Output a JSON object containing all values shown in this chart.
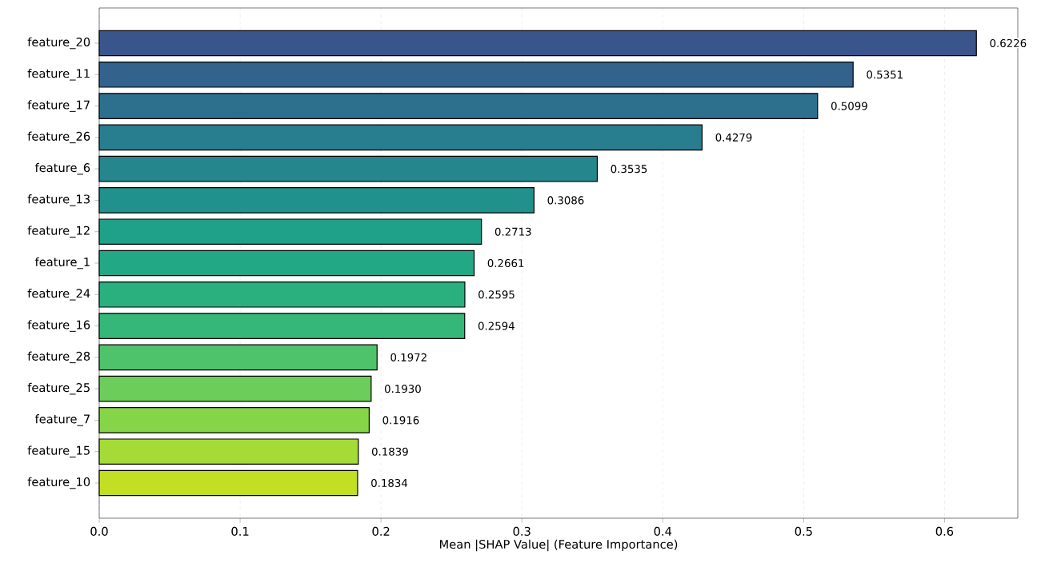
{
  "chart_data": {
    "type": "bar",
    "orientation": "horizontal",
    "xlabel": "Mean |SHAP Value| (Feature Importance)",
    "categories": [
      "feature_20",
      "feature_11",
      "feature_17",
      "feature_26",
      "feature_6",
      "feature_13",
      "feature_12",
      "feature_1",
      "feature_24",
      "feature_16",
      "feature_28",
      "feature_25",
      "feature_7",
      "feature_15",
      "feature_10"
    ],
    "values": [
      0.6226,
      0.5351,
      0.5099,
      0.4279,
      0.3535,
      0.3086,
      0.2713,
      0.2661,
      0.2595,
      0.2594,
      0.1972,
      0.193,
      0.1916,
      0.1839,
      0.1834
    ],
    "value_labels": [
      "0.6226",
      "0.5351",
      "0.5099",
      "0.4279",
      "0.3535",
      "0.3086",
      "0.2713",
      "0.2661",
      "0.2595",
      "0.2594",
      "0.1972",
      "0.1930",
      "0.1916",
      "0.1839",
      "0.1834"
    ],
    "colors": [
      "#3a548c",
      "#33628d",
      "#2d708e",
      "#287d8e",
      "#25868e",
      "#21918c",
      "#1fa088",
      "#22a884",
      "#2ab07f",
      "#35b779",
      "#4ec36b",
      "#6ccd5a",
      "#86d549",
      "#a5db36",
      "#c2df23"
    ],
    "xlim": [
      0,
      0.652
    ],
    "xticks": [
      {
        "value": 0,
        "label": "0.0"
      },
      0.1,
      0.2,
      0.3,
      0.4,
      0.5,
      0.6
    ],
    "grid": "x"
  }
}
